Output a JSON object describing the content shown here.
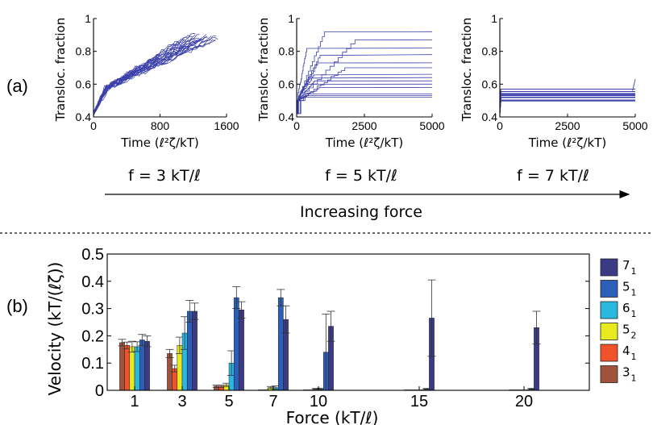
{
  "panel_labels": {
    "a": "(a)",
    "b": "(b)"
  },
  "arrow_label": "Increasing force",
  "chart_data": [
    {
      "type": "line",
      "panel": "a-left",
      "caption": "f = 3 kT/ℓ",
      "xlabel": "Time (ℓ²ζ/kT)",
      "ylabel": "Transloc. fraction",
      "xlim": [
        0,
        1600
      ],
      "ylim": [
        0.4,
        1.0
      ],
      "xticks": [
        "0",
        "800",
        "1600"
      ],
      "yticks": [
        "0.4",
        "0.6",
        "0.8",
        "1"
      ],
      "color": "#3a3fa8",
      "n_traces": 24,
      "trace_profile": {
        "start_y": 0.42,
        "end_y_range": [
          0.86,
          0.92
        ],
        "end_x_range": [
          1050,
          1500
        ]
      }
    },
    {
      "type": "line",
      "panel": "a-middle",
      "caption": "f = 5 kT/ℓ",
      "xlabel": "Time (ℓ²ζ/kT)",
      "ylabel": "Transloc. fraction",
      "xlim": [
        0,
        5000
      ],
      "ylim": [
        0.4,
        1.0
      ],
      "xticks": [
        "0",
        "2500",
        "5000"
      ],
      "yticks": [
        "0.4",
        "0.6",
        "0.8",
        "1"
      ],
      "color": "#3a3fa8",
      "n_traces": 18,
      "plateau_levels": [
        0.52,
        0.53,
        0.54,
        0.58,
        0.6,
        0.62,
        0.64,
        0.66,
        0.7,
        0.73,
        0.78,
        0.82,
        0.87,
        0.92
      ]
    },
    {
      "type": "line",
      "panel": "a-right",
      "caption": "f = 7 kT/ℓ",
      "xlabel": "Time (ℓ²ζ/kT)",
      "ylabel": "Transloc. fraction",
      "xlim": [
        0,
        5000
      ],
      "ylim": [
        0.4,
        1.0
      ],
      "xticks": [
        "0",
        "2500",
        "5000"
      ],
      "yticks": [
        "0.4",
        "0.6",
        "0.8",
        "1"
      ],
      "color": "#3a3fa8",
      "n_traces": 20,
      "plateau_range": [
        0.49,
        0.57
      ]
    },
    {
      "type": "bar",
      "panel": "b",
      "xlabel": "Force (kT/ℓ)",
      "ylabel": "Velocity (kT/(ℓζ))",
      "ylim": [
        0,
        0.5
      ],
      "yticks": [
        "0",
        "0.1",
        "0.2",
        "0.3",
        "0.4",
        "0.5"
      ],
      "categories": [
        "1",
        "3",
        "5",
        "7",
        "10",
        "15",
        "20"
      ],
      "series": [
        {
          "name": "3",
          "sub": "1",
          "color": "#a0523d",
          "values": [
            0.175,
            0.135,
            0.015,
            0.0,
            0.0,
            0.0,
            0.0
          ],
          "errors": [
            0.012,
            0.015,
            0.004,
            0,
            0,
            0,
            0
          ]
        },
        {
          "name": "4",
          "sub": "1",
          "color": "#f0522b",
          "values": [
            0.165,
            0.08,
            0.015,
            0.0,
            0.0,
            0.0,
            0.0
          ],
          "errors": [
            0.012,
            0.012,
            0.004,
            0,
            0,
            0,
            0
          ]
        },
        {
          "name": "5",
          "sub": "2",
          "color": "#e6ea1f",
          "values": [
            0.16,
            0.165,
            0.02,
            0.01,
            0.005,
            0.0,
            0.0
          ],
          "errors": [
            0.02,
            0.03,
            0.006,
            0.004,
            0.002,
            0,
            0
          ]
        },
        {
          "name": "6",
          "sub": "1",
          "color": "#2bb8e0",
          "values": [
            0.16,
            0.21,
            0.1,
            0.01,
            0.005,
            0.0,
            0.0
          ],
          "errors": [
            0.018,
            0.06,
            0.045,
            0.006,
            0.003,
            0,
            0
          ]
        },
        {
          "name": "5",
          "sub": "1",
          "color": "#2b5fb8",
          "values": [
            0.185,
            0.29,
            0.34,
            0.34,
            0.14,
            0.005,
            0.005
          ],
          "errors": [
            0.02,
            0.04,
            0.04,
            0.03,
            0.14,
            0.002,
            0.002
          ]
        },
        {
          "name": "7",
          "sub": "1",
          "color": "#3b3a85",
          "values": [
            0.18,
            0.29,
            0.295,
            0.26,
            0.235,
            0.265,
            0.23
          ],
          "errors": [
            0.02,
            0.03,
            0.03,
            0.05,
            0.055,
            0.14,
            0.06
          ]
        }
      ],
      "legend_position": "right"
    }
  ]
}
